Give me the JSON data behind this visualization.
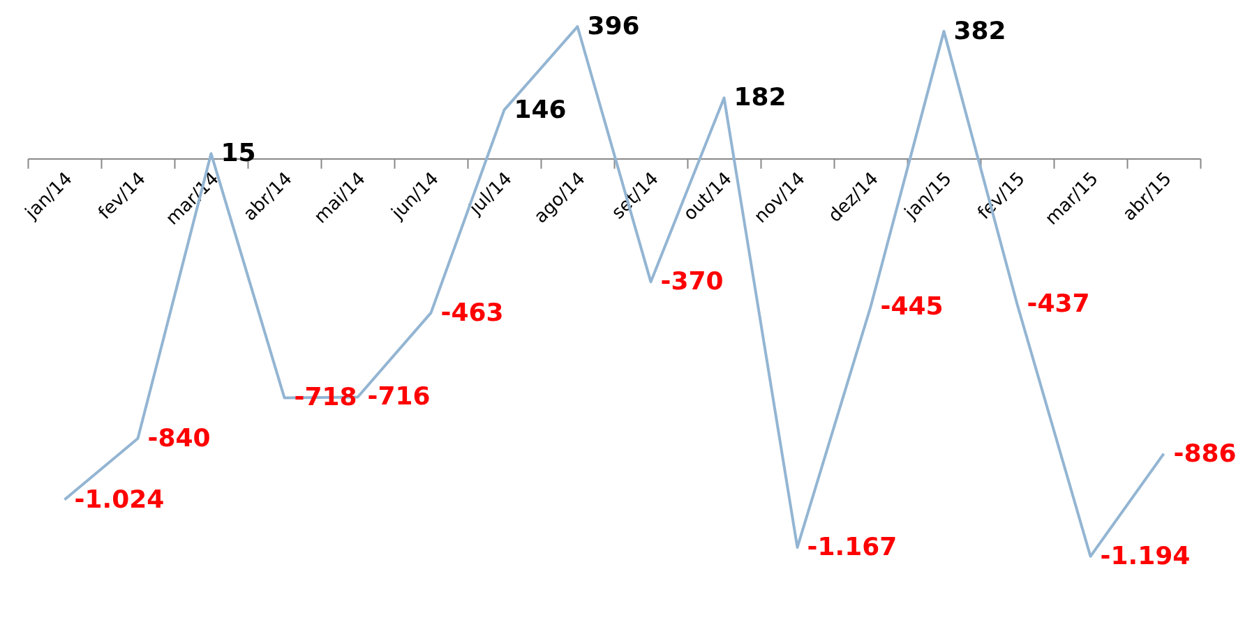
{
  "chart_data": {
    "type": "line",
    "categories": [
      "jan/14",
      "fev/14",
      "mar/14",
      "abr/14",
      "mai/14",
      "jun/14",
      "jul/14",
      "ago/14",
      "set/14",
      "out/14",
      "nov/14",
      "dez/14",
      "jan/15",
      "fev/15",
      "mar/15",
      "abr/15"
    ],
    "series": [
      {
        "color": "#93b5d3",
        "values": [
          -1024,
          -840,
          15,
          -718,
          -716,
          -463,
          146,
          396,
          -370,
          182,
          -1167,
          -445,
          382,
          -437,
          -1194,
          -886
        ],
        "value_labels": [
          "-1.024",
          "-840",
          "15",
          "-718",
          "-716",
          "-463",
          "146",
          "396",
          "-370",
          "182",
          "-1.167",
          "-445",
          "382",
          "-437",
          "-1.194",
          "-886"
        ]
      }
    ],
    "grid": false,
    "marker": "none",
    "line_style": "solid"
  }
}
